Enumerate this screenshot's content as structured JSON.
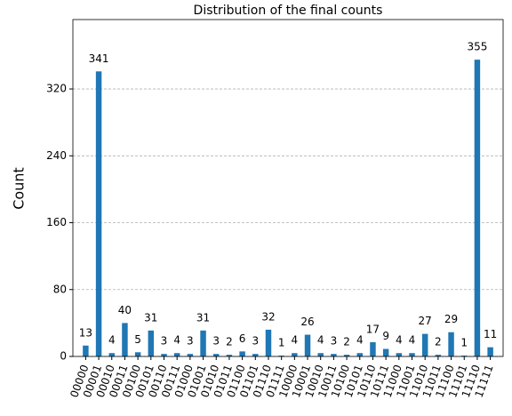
{
  "chart_data": {
    "type": "bar",
    "title": "Distribution of the final counts",
    "y_label": "Count",
    "categories": [
      "00000",
      "00001",
      "00010",
      "00011",
      "00100",
      "00101",
      "00110",
      "00111",
      "01000",
      "01001",
      "01010",
      "01011",
      "01100",
      "01101",
      "01110",
      "01111",
      "10000",
      "10001",
      "10010",
      "10011",
      "10100",
      "10101",
      "10110",
      "10111",
      "11000",
      "11001",
      "11010",
      "11011",
      "11100",
      "11101",
      "11110",
      "11111"
    ],
    "values": [
      13,
      341,
      4,
      40,
      5,
      31,
      3,
      4,
      3,
      31,
      3,
      2,
      6,
      3,
      32,
      1,
      4,
      26,
      4,
      3,
      2,
      4,
      17,
      9,
      4,
      4,
      27,
      2,
      29,
      1,
      355,
      11
    ],
    "color": "#1f77b4",
    "ylim": [
      0,
      403
    ],
    "yticks": [
      0,
      80,
      160,
      240,
      320
    ],
    "grid": true
  }
}
